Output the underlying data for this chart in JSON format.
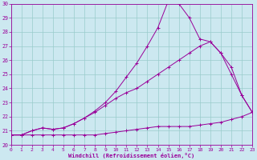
{
  "xlabel": "Windchill (Refroidissement éolien,°C)",
  "bg_color": "#cce8f0",
  "grid_color": "#99cccc",
  "line_color": "#990099",
  "xmin": 0,
  "xmax": 23,
  "ymin": 20,
  "ymax": 30,
  "curve1_x": [
    0,
    1,
    2,
    3,
    4,
    5,
    6,
    7,
    8,
    9,
    10,
    11,
    12,
    13,
    14,
    15,
    16,
    17,
    18,
    19,
    20,
    21,
    22,
    23
  ],
  "curve1_y": [
    20.7,
    20.7,
    20.7,
    20.7,
    20.7,
    20.7,
    20.7,
    20.7,
    20.7,
    20.8,
    20.9,
    21.0,
    21.1,
    21.2,
    21.3,
    21.3,
    21.3,
    21.3,
    21.4,
    21.5,
    21.6,
    21.8,
    22.0,
    22.3
  ],
  "curve2_x": [
    0,
    1,
    2,
    3,
    4,
    5,
    6,
    7,
    8,
    9,
    10,
    11,
    12,
    13,
    14,
    15,
    16,
    17,
    18,
    19,
    20,
    21,
    22,
    23
  ],
  "curve2_y": [
    20.7,
    20.7,
    21.0,
    21.2,
    21.1,
    21.2,
    21.5,
    21.9,
    22.3,
    22.8,
    23.3,
    23.7,
    24.0,
    24.5,
    25.0,
    25.5,
    26.0,
    26.5,
    27.0,
    27.3,
    26.5,
    25.5,
    23.5,
    22.3
  ],
  "curve3_x": [
    0,
    1,
    2,
    3,
    4,
    5,
    6,
    7,
    8,
    9,
    10,
    11,
    12,
    13,
    14,
    15,
    16,
    17,
    18,
    19,
    20,
    21,
    22,
    23
  ],
  "curve3_y": [
    20.7,
    20.7,
    21.0,
    21.2,
    21.1,
    21.2,
    21.5,
    21.9,
    22.4,
    23.0,
    23.8,
    24.8,
    25.8,
    27.0,
    28.3,
    30.2,
    30.0,
    29.0,
    27.5,
    27.3,
    26.5,
    25.0,
    23.5,
    22.3
  ],
  "yticks": [
    20,
    21,
    22,
    23,
    24,
    25,
    26,
    27,
    28,
    29,
    30
  ],
  "xticks": [
    0,
    1,
    2,
    3,
    4,
    5,
    6,
    7,
    8,
    9,
    10,
    11,
    12,
    13,
    14,
    15,
    16,
    17,
    18,
    19,
    20,
    21,
    22,
    23
  ]
}
